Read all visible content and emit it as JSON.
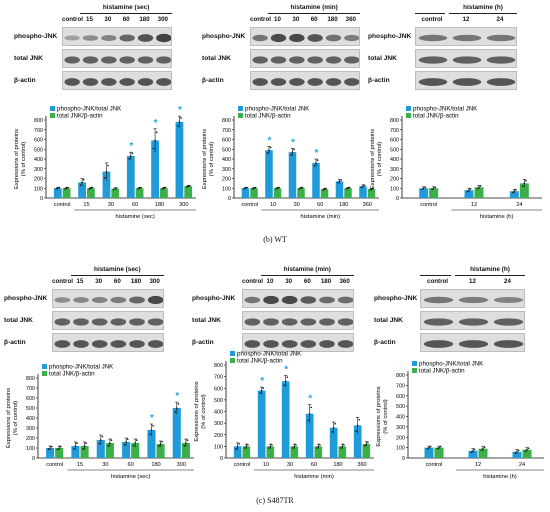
{
  "colors": {
    "phospho": "#1f9bd9",
    "total": "#3bb049",
    "star": "#29a8e0",
    "band": "#3a3a3a"
  },
  "labels": {
    "phospho_jnk": "phospho-JNK",
    "total_jnk": "total JNK",
    "beta_actin": "β-actin",
    "asterisk": "*"
  },
  "captions": {
    "wt": "(b) WT",
    "s487tr": "(c) S487TR"
  },
  "panels": [
    {
      "id": "wt-sec",
      "header": "histamine (sec)",
      "lanes": [
        "control",
        "15",
        "30",
        "60",
        "180",
        "300"
      ],
      "band_intensity": {
        "phospho": [
          0.2,
          0.35,
          0.45,
          0.7,
          0.85,
          1.0
        ],
        "total": [
          0.75,
          0.75,
          0.75,
          0.75,
          0.75,
          0.75
        ],
        "actin": [
          0.85,
          0.85,
          0.85,
          0.85,
          0.85,
          0.85
        ]
      },
      "chart_data": {
        "type": "bar",
        "categories": [
          "control",
          "15",
          "30",
          "60",
          "180",
          "300"
        ],
        "xlabel": "histamine (sec)",
        "ylabel": "Expressions of proteins\n(% of control)",
        "ylim": [
          0,
          800
        ],
        "yticks": [
          0,
          100,
          200,
          300,
          400,
          500,
          600,
          700,
          800
        ],
        "legend_position": "top-left",
        "series": [
          {
            "name": "phospho-JNK/total JNK",
            "values": [
              100,
              160,
              270,
              430,
              590,
              780
            ],
            "errors": [
              10,
              40,
              90,
              40,
              120,
              60
            ]
          },
          {
            "name": "total JNK/β-actin",
            "values": [
              100,
              100,
              95,
              100,
              100,
              120
            ],
            "errors": [
              10,
              10,
              10,
              10,
              10,
              10
            ]
          }
        ],
        "significance": [
          false,
          false,
          false,
          true,
          true,
          true
        ]
      }
    },
    {
      "id": "wt-min",
      "header": "histamine (min)",
      "lanes": [
        "control",
        "10",
        "30",
        "60",
        "180",
        "360"
      ],
      "band_intensity": {
        "phospho": [
          0.55,
          0.95,
          0.95,
          0.85,
          0.6,
          0.5
        ],
        "total": [
          0.75,
          0.75,
          0.75,
          0.75,
          0.75,
          0.75
        ],
        "actin": [
          0.85,
          0.85,
          0.85,
          0.85,
          0.85,
          0.85
        ]
      },
      "chart_data": {
        "type": "bar",
        "categories": [
          "control",
          "10",
          "30",
          "60",
          "180",
          "360"
        ],
        "xlabel": "histamine (min)",
        "ylabel": "Expressions of proteins\n(% of control)",
        "ylim": [
          0,
          800
        ],
        "yticks": [
          0,
          100,
          200,
          300,
          400,
          500,
          600,
          700,
          800
        ],
        "legend_position": "top-left",
        "series": [
          {
            "name": "phospho-JNK/total JNK",
            "values": [
              100,
              490,
              470,
              360,
              170,
              120
            ],
            "errors": [
              10,
              40,
              40,
              40,
              20,
              15
            ]
          },
          {
            "name": "total JNK/β-actin",
            "values": [
              100,
              100,
              100,
              90,
              100,
              90
            ],
            "errors": [
              10,
              10,
              10,
              10,
              10,
              10
            ]
          }
        ],
        "significance": [
          false,
          true,
          true,
          true,
          false,
          false
        ]
      }
    },
    {
      "id": "wt-h",
      "header": "histamine (h)",
      "lanes": [
        "control",
        "12",
        "24"
      ],
      "band_intensity": {
        "phospho": [
          0.55,
          0.55,
          0.55
        ],
        "total": [
          0.75,
          0.75,
          0.75
        ],
        "actin": [
          0.85,
          0.85,
          0.85
        ]
      },
      "chart_data": {
        "type": "bar",
        "categories": [
          "control",
          "12",
          "24"
        ],
        "xlabel": "histamine (h)",
        "ylabel": "Expressions of proteins\n(% of control)",
        "ylim": [
          0,
          800
        ],
        "yticks": [
          0,
          100,
          200,
          300,
          400,
          500,
          600,
          700,
          800
        ],
        "legend_position": "top-left",
        "series": [
          {
            "name": "phospho-JNK/total JNK",
            "values": [
              100,
              80,
              70
            ],
            "errors": [
              15,
              20,
              20
            ]
          },
          {
            "name": "total JNK/β-actin",
            "values": [
              100,
              110,
              150
            ],
            "errors": [
              15,
              20,
              40
            ]
          }
        ],
        "significance": [
          false,
          false,
          false
        ]
      }
    },
    {
      "id": "s487tr-sec",
      "header": "histamine (sec)",
      "lanes": [
        "control",
        "15",
        "30",
        "60",
        "180",
        "300"
      ],
      "band_intensity": {
        "phospho": [
          0.35,
          0.4,
          0.45,
          0.5,
          0.7,
          0.95
        ],
        "total": [
          0.75,
          0.75,
          0.75,
          0.75,
          0.75,
          0.75
        ],
        "actin": [
          0.85,
          0.85,
          0.85,
          0.85,
          0.85,
          0.85
        ]
      },
      "chart_data": {
        "type": "bar",
        "categories": [
          "control",
          "15",
          "30",
          "60",
          "180",
          "300"
        ],
        "xlabel": "histamine (sec)",
        "ylabel": "Expressions of proteins\n(% of control)",
        "ylim": [
          0,
          800
        ],
        "yticks": [
          0,
          100,
          200,
          300,
          400,
          500,
          600,
          700,
          800
        ],
        "legend_position": "top-left",
        "series": [
          {
            "name": "phospho-JNK/total JNK",
            "values": [
              100,
              120,
              180,
              160,
              280,
              500
            ],
            "errors": [
              20,
              40,
              50,
              40,
              60,
              60
            ]
          },
          {
            "name": "total JNK/β-actin",
            "values": [
              100,
              120,
              150,
              150,
              140,
              150
            ],
            "errors": [
              20,
              40,
              40,
              40,
              30,
              40
            ]
          }
        ],
        "significance": [
          false,
          false,
          false,
          false,
          true,
          true
        ]
      }
    },
    {
      "id": "s487tr-min",
      "header": "histamine (min)",
      "lanes": [
        "control",
        "10",
        "30",
        "60",
        "180",
        "360"
      ],
      "band_intensity": {
        "phospho": [
          0.55,
          0.95,
          0.95,
          0.8,
          0.65,
          0.65
        ],
        "total": [
          0.75,
          0.75,
          0.75,
          0.75,
          0.75,
          0.75
        ],
        "actin": [
          0.85,
          0.85,
          0.85,
          0.85,
          0.85,
          0.85
        ]
      },
      "chart_data": {
        "type": "bar",
        "categories": [
          "control",
          "10",
          "30",
          "60",
          "180",
          "360"
        ],
        "xlabel": "histamine (min)",
        "ylabel": "Expressions of proteins\n(% of control)",
        "ylim": [
          0,
          800
        ],
        "yticks": [
          0,
          100,
          200,
          300,
          400,
          500,
          600,
          700,
          800
        ],
        "legend_position": "top-left",
        "series": [
          {
            "name": "phospho-JNK/total JNK",
            "values": [
              100,
              580,
              660,
              380,
              260,
              280
            ],
            "errors": [
              30,
              30,
              50,
              80,
              50,
              70
            ]
          },
          {
            "name": "total JNK/β-actin",
            "values": [
              100,
              100,
              100,
              100,
              100,
              120
            ],
            "errors": [
              20,
              20,
              20,
              20,
              20,
              20
            ]
          }
        ],
        "significance": [
          false,
          true,
          true,
          true,
          false,
          false
        ]
      }
    },
    {
      "id": "s487tr-h",
      "header": "histamine (h)",
      "lanes": [
        "control",
        "12",
        "24"
      ],
      "band_intensity": {
        "phospho": [
          0.55,
          0.5,
          0.45
        ],
        "total": [
          0.75,
          0.75,
          0.75
        ],
        "actin": [
          0.85,
          0.85,
          0.85
        ]
      },
      "chart_data": {
        "type": "bar",
        "categories": [
          "control",
          "12",
          "24"
        ],
        "xlabel": "histamine (h)",
        "ylabel": "Expressions of proteins\n(% of control)",
        "ylim": [
          0,
          800
        ],
        "yticks": [
          0,
          100,
          200,
          300,
          400,
          500,
          600,
          700,
          800
        ],
        "legend_position": "top-left",
        "series": [
          {
            "name": "phospho-JNK/total JNK",
            "values": [
              100,
              70,
              60
            ],
            "errors": [
              15,
              20,
              20
            ]
          },
          {
            "name": "total JNK/β-actin",
            "values": [
              100,
              90,
              80
            ],
            "errors": [
              15,
              20,
              20
            ]
          }
        ],
        "significance": [
          false,
          false,
          false
        ]
      }
    }
  ]
}
